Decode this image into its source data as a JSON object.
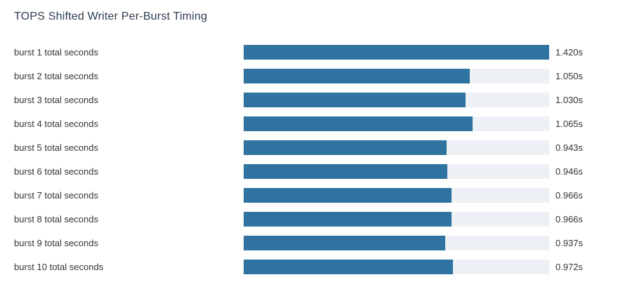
{
  "title": "TOPS Shifted Writer Per-Burst Timing",
  "colors": {
    "bar": "#2f73a0",
    "track": "#edf0f5",
    "title_text": "#2e3c4e",
    "label_text": "#333333"
  },
  "chart_data": {
    "type": "bar",
    "orientation": "horizontal",
    "title": "TOPS Shifted Writer Per-Burst Timing",
    "xlabel": "",
    "ylabel": "",
    "xlim": [
      0,
      1.42
    ],
    "grid": false,
    "legend": false,
    "categories": [
      "burst 1 total seconds",
      "burst 2 total seconds",
      "burst 3 total seconds",
      "burst 4 total seconds",
      "burst 5 total seconds",
      "burst 6 total seconds",
      "burst 7 total seconds",
      "burst 8 total seconds",
      "burst 9 total seconds",
      "burst 10 total seconds"
    ],
    "values": [
      1.42,
      1.05,
      1.03,
      1.065,
      0.943,
      0.946,
      0.966,
      0.966,
      0.937,
      0.972
    ],
    "value_labels": [
      "1.420s",
      "1.050s",
      "1.030s",
      "1.065s",
      "0.943s",
      "0.946s",
      "0.966s",
      "0.966s",
      "0.937s",
      "0.972s"
    ]
  }
}
